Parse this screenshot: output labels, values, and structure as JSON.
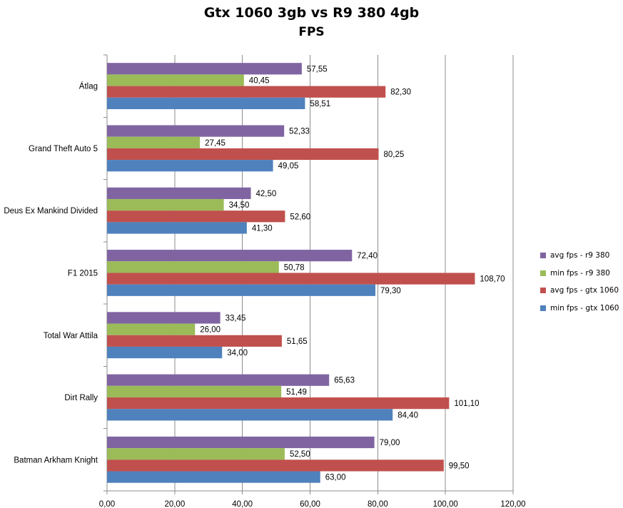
{
  "chart_data": {
    "type": "bar",
    "orientation": "horizontal",
    "title": "Gtx 1060 3gb vs R9 380 4gb",
    "subtitle": "FPS",
    "xlim": [
      0,
      120
    ],
    "xticks": [
      "0,00",
      "20,00",
      "40,00",
      "60,00",
      "80,00",
      "100,00",
      "120,00"
    ],
    "grid": true,
    "legend_position": "right",
    "categories": [
      "Átlag",
      "Grand Theft Auto 5",
      "Deus Ex Mankind Divided",
      "F1 2015",
      "Total War Attila",
      "Dirt Rally",
      "Batman Arkham Knight"
    ],
    "series": [
      {
        "name": "avg fps - r9 380",
        "color": "#8064a2",
        "values": [
          57.55,
          52.33,
          42.5,
          72.4,
          33.45,
          65.63,
          79.0
        ],
        "labels": [
          "57,55",
          "52,33",
          "42,50",
          "72,40",
          "33,45",
          "65,63",
          "79,00"
        ]
      },
      {
        "name": "min fps - r9 380",
        "color": "#9bbb59",
        "values": [
          40.45,
          27.45,
          34.5,
          50.78,
          26.0,
          51.49,
          52.5
        ],
        "labels": [
          "40,45",
          "27,45",
          "34,50",
          "50,78",
          "26,00",
          "51,49",
          "52,50"
        ]
      },
      {
        "name": "avg fps - gtx 1060",
        "color": "#c0504d",
        "values": [
          82.3,
          80.25,
          52.6,
          108.7,
          51.65,
          101.1,
          99.5
        ],
        "labels": [
          "82,30",
          "80,25",
          "52,60",
          "108,70",
          "51,65",
          "101,10",
          "99,50"
        ]
      },
      {
        "name": "min fps - gtx 1060",
        "color": "#4f81bd",
        "values": [
          58.51,
          49.05,
          41.3,
          79.3,
          34.0,
          84.4,
          63.0
        ],
        "labels": [
          "58,51",
          "49,05",
          "41,30",
          "79,30",
          "34,00",
          "84,40",
          "63,00"
        ]
      }
    ]
  }
}
